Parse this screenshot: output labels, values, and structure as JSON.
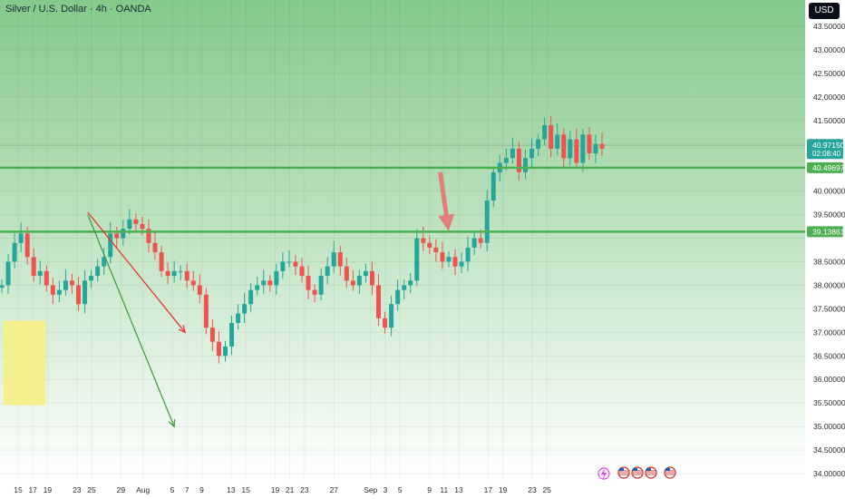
{
  "header": {
    "title": "Silver / U.S. Dollar · 4h · OANDA",
    "currency": "USD"
  },
  "colors": {
    "background_top": "#84c98a",
    "background_bottom": "#ffffff",
    "up_candle": "#26a69a",
    "down_candle": "#ef5350",
    "support_line": "#4caf50",
    "red_trendline": "#e53935",
    "green_trendline": "#43a047",
    "highlight_box": "#f5ef8a",
    "price_label_bg": "#26a69a",
    "level_label_bg": "#4caf50",
    "arrow": "#e57373"
  },
  "price_axis": {
    "ticks": [
      "43.50000",
      "43.00000",
      "42.50000",
      "42.00000",
      "41.50000",
      "40.00000",
      "39.50000",
      "38.50000",
      "38.00000",
      "37.50000",
      "37.00000",
      "36.50000",
      "36.00000",
      "35.50000",
      "35.00000",
      "34.50000",
      "34.00000"
    ],
    "current_price": "40.97150",
    "countdown": "02:08:40",
    "level_upper": "40.49697",
    "level_lower": "39.13861"
  },
  "time_axis": {
    "labels": [
      "15",
      "17",
      "19",
      "23",
      "25",
      "29",
      "Aug",
      "5",
      "7",
      "9",
      "13",
      "15",
      "19",
      "21",
      "23",
      "27",
      "Sep",
      "3",
      "5",
      "9",
      "11",
      "13",
      "17",
      "19",
      "23",
      "25"
    ]
  },
  "events": {
    "icons": [
      "lightning-icon",
      "us-flag-icon",
      "us-flag-icon",
      "us-flag-icon",
      "us-flag-icon"
    ]
  },
  "chart_data": {
    "type": "candlestick",
    "title": "Silver / U.S. Dollar · 4h · OANDA",
    "xlabel": "",
    "ylabel": "",
    "ylim": [
      34.0,
      43.5
    ],
    "x_dates": [
      "Jul 15",
      "Jul 17",
      "Jul 19",
      "Jul 23",
      "Jul 25",
      "Jul 29",
      "Aug 1",
      "Aug 5",
      "Aug 7",
      "Aug 9",
      "Aug 13",
      "Aug 15",
      "Aug 19",
      "Aug 21",
      "Aug 23",
      "Aug 27",
      "Sep 1",
      "Sep 3",
      "Sep 5",
      "Sep 9",
      "Sep 11",
      "Sep 13",
      "Sep 17",
      "Sep 19",
      "Sep 23",
      "Sep 25"
    ],
    "horizontal_levels": [
      40.49697,
      39.13861
    ],
    "current_price": 40.9715,
    "close_series": [
      38.0,
      38.5,
      38.9,
      39.1,
      38.6,
      38.2,
      38.3,
      38.0,
      37.8,
      37.9,
      38.1,
      38.0,
      37.6,
      38.1,
      38.2,
      38.4,
      38.6,
      39.1,
      39.0,
      39.2,
      39.4,
      39.3,
      39.2,
      38.9,
      38.7,
      38.3,
      38.2,
      38.3,
      38.3,
      38.1,
      38.0,
      37.8,
      37.1,
      36.8,
      36.5,
      36.7,
      37.2,
      37.4,
      37.6,
      37.9,
      38.0,
      38.1,
      38.0,
      38.3,
      38.5,
      38.5,
      38.4,
      38.2,
      37.9,
      37.8,
      38.2,
      38.4,
      38.7,
      38.4,
      38.1,
      38.0,
      38.2,
      38.3,
      38.0,
      37.3,
      37.1,
      37.6,
      37.9,
      38.0,
      38.1,
      39.0,
      38.9,
      38.8,
      38.7,
      38.5,
      38.6,
      38.4,
      38.5,
      38.8,
      39.0,
      38.9,
      39.8,
      40.4,
      40.6,
      40.7,
      40.9,
      40.4,
      40.7,
      40.9,
      41.1,
      41.4,
      40.9,
      41.2,
      40.7,
      41.1,
      40.6,
      41.2,
      40.8,
      41.0,
      40.9
    ],
    "annotations": [
      {
        "type": "trendline",
        "color": "red",
        "from": [
          "Jul 23",
          39.55
        ],
        "to": [
          "Aug 5",
          37.0
        ]
      },
      {
        "type": "trendline",
        "color": "green",
        "from": [
          "Jul 23",
          39.5
        ],
        "to": [
          "Aug 5",
          35.0
        ]
      },
      {
        "type": "arrow",
        "color": "red",
        "from": [
          "Sep 9",
          40.4
        ],
        "to": [
          "Sep 11",
          39.15
        ]
      },
      {
        "type": "highlight-box",
        "color": "yellow",
        "price_range": [
          35.45,
          37.25
        ],
        "x_range": [
          "Jul 13",
          "Jul 19"
        ]
      }
    ]
  }
}
